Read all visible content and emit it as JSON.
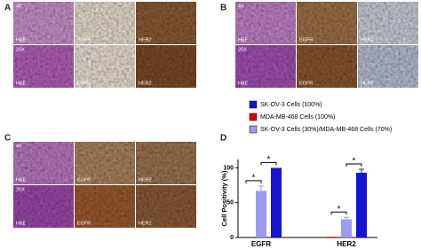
{
  "panels": [
    {
      "label": "A",
      "rows": [
        {
          "magnification": "4X",
          "stains": [
            "H&E",
            "EGFR",
            "HER2"
          ]
        },
        {
          "magnification": "20X",
          "stains": [
            "H&E",
            "EGFR",
            "HER2"
          ]
        }
      ]
    },
    {
      "label": "B",
      "rows": [
        {
          "magnification": "4X",
          "stains": [
            "H&E",
            "EGFR",
            "HER2"
          ]
        },
        {
          "magnification": "20X",
          "stains": [
            "H&E",
            "EGFR",
            "HER2"
          ]
        }
      ]
    },
    {
      "label": "C",
      "rows": [
        {
          "magnification": "4X",
          "stains": [
            "H&E",
            "EGFR",
            "HER2"
          ]
        },
        {
          "magnification": "20X",
          "stains": [
            "H&E",
            "EGFR",
            "HER2"
          ]
        }
      ]
    }
  ],
  "chart_data": {
    "type": "bar",
    "label": "D",
    "y_label": "Cell Positivity (%)",
    "categories": [
      "EGFR",
      "HER2"
    ],
    "series": [
      {
        "name": "SK-OV-3 Cells (100%)",
        "color": "#1414d2",
        "values": [
          100,
          93
        ],
        "errors": [
          0,
          5
        ]
      },
      {
        "name": "MDA-MB-468 Cells (100%)",
        "color": "#e00000",
        "values": [
          0,
          1
        ],
        "errors": [
          0,
          0
        ]
      },
      {
        "name": "SK-OV-3 Cells (30%)/MDA-MB-468 Cells (70%)",
        "color": "#9a9cf0",
        "values": [
          67,
          26
        ],
        "errors": [
          7,
          3
        ]
      }
    ],
    "ylim": [
      0,
      112
    ],
    "yticks": [
      0,
      50,
      100
    ],
    "annotations": [
      "*",
      "*",
      "*",
      "*"
    ]
  }
}
